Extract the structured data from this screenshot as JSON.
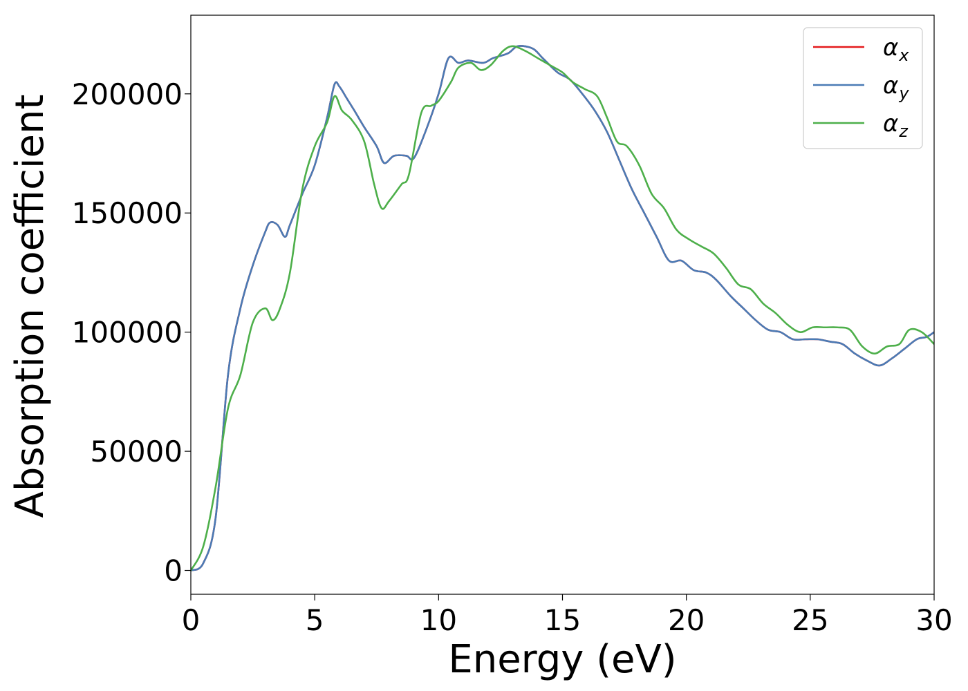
{
  "chart_data": {
    "type": "line",
    "title": "",
    "xlabel": "Energy (eV)",
    "ylabel": "Absorption coefficient",
    "xlim": [
      0,
      30
    ],
    "ylim": [
      -10000,
      233000
    ],
    "xticks": [
      0,
      5,
      10,
      15,
      20,
      25,
      30
    ],
    "yticks": [
      0,
      50000,
      100000,
      150000,
      200000
    ],
    "xtick_labels": [
      "0",
      "5",
      "10",
      "15",
      "20",
      "25",
      "30"
    ],
    "ytick_labels": [
      "0",
      "50000",
      "100000",
      "150000",
      "200000"
    ],
    "grid": false,
    "legend_position": "top-right",
    "series": [
      {
        "name": "α",
        "subscript": "x",
        "color": "#e41a1c",
        "x": [
          0,
          0.5,
          1,
          1.5,
          2,
          2.5,
          3,
          3.2,
          3.5,
          3.8,
          4,
          4.5,
          5,
          5.5,
          5.8,
          6,
          6.3,
          6.6,
          7,
          7.5,
          7.8,
          8.2,
          8.7,
          9,
          9.5,
          10,
          10.4,
          10.8,
          11.2,
          11.8,
          12.2,
          12.8,
          13.2,
          13.8,
          14.2,
          14.8,
          15.3,
          15.8,
          16.3,
          16.8,
          17.3,
          17.8,
          18.3,
          18.8,
          19.3,
          19.8,
          20.3,
          20.8,
          21.2,
          21.8,
          22.3,
          22.8,
          23.3,
          23.8,
          24.3,
          24.8,
          25.3,
          25.8,
          26.3,
          26.8,
          27.3,
          27.8,
          28.3,
          28.8,
          29.3,
          29.7,
          30
        ],
        "values": [
          0,
          3000,
          22000,
          82000,
          110000,
          128000,
          142000,
          146000,
          145000,
          140000,
          145000,
          158000,
          170000,
          190000,
          204000,
          203000,
          198000,
          193000,
          186000,
          178000,
          171000,
          174000,
          174000,
          173000,
          185000,
          200000,
          215000,
          213000,
          214000,
          213000,
          215000,
          217000,
          220000,
          219000,
          215000,
          209000,
          206000,
          200000,
          193000,
          184000,
          172000,
          160000,
          150000,
          140000,
          130000,
          130000,
          126000,
          125000,
          122000,
          115000,
          110000,
          105000,
          101000,
          100000,
          97000,
          97000,
          97000,
          96000,
          95000,
          91000,
          88000,
          86000,
          89000,
          93000,
          97000,
          98000,
          100000
        ]
      },
      {
        "name": "α",
        "subscript": "y",
        "color": "#4a7bb5",
        "x": [
          0,
          0.5,
          1,
          1.5,
          2,
          2.5,
          3,
          3.2,
          3.5,
          3.8,
          4,
          4.5,
          5,
          5.5,
          5.8,
          6,
          6.3,
          6.6,
          7,
          7.5,
          7.8,
          8.2,
          8.7,
          9,
          9.5,
          10,
          10.4,
          10.8,
          11.2,
          11.8,
          12.2,
          12.8,
          13.2,
          13.8,
          14.2,
          14.8,
          15.3,
          15.8,
          16.3,
          16.8,
          17.3,
          17.8,
          18.3,
          18.8,
          19.3,
          19.8,
          20.3,
          20.8,
          21.2,
          21.8,
          22.3,
          22.8,
          23.3,
          23.8,
          24.3,
          24.8,
          25.3,
          25.8,
          26.3,
          26.8,
          27.3,
          27.8,
          28.3,
          28.8,
          29.3,
          29.7,
          30
        ],
        "values": [
          0,
          3000,
          22000,
          82000,
          110000,
          128000,
          142000,
          146000,
          145000,
          140000,
          145000,
          158000,
          170000,
          190000,
          204000,
          203000,
          198000,
          193000,
          186000,
          178000,
          171000,
          174000,
          174000,
          173000,
          185000,
          200000,
          215000,
          213000,
          214000,
          213000,
          215000,
          217000,
          220000,
          219000,
          215000,
          209000,
          206000,
          200000,
          193000,
          184000,
          172000,
          160000,
          150000,
          140000,
          130000,
          130000,
          126000,
          125000,
          122000,
          115000,
          110000,
          105000,
          101000,
          100000,
          97000,
          97000,
          97000,
          96000,
          95000,
          91000,
          88000,
          86000,
          89000,
          93000,
          97000,
          98000,
          100000
        ]
      },
      {
        "name": "α",
        "subscript": "z",
        "color": "#4daf4a",
        "x": [
          0,
          0.5,
          1,
          1.5,
          2,
          2.5,
          3,
          3.3,
          3.6,
          4,
          4.5,
          5,
          5.5,
          5.8,
          6.1,
          6.5,
          7,
          7.4,
          7.7,
          8,
          8.5,
          8.8,
          9.3,
          9.7,
          10,
          10.5,
          10.8,
          11.3,
          11.7,
          12.1,
          12.6,
          13,
          13.5,
          14,
          14.5,
          15,
          15.4,
          15.9,
          16.4,
          16.8,
          17.2,
          17.6,
          18.1,
          18.6,
          19.1,
          19.6,
          20.1,
          20.6,
          21.1,
          21.6,
          22.1,
          22.6,
          23.1,
          23.6,
          24.1,
          24.6,
          25.1,
          25.6,
          26.1,
          26.6,
          27.1,
          27.6,
          28.1,
          28.6,
          29,
          29.5,
          30
        ],
        "values": [
          0,
          10000,
          35000,
          68000,
          82000,
          104000,
          110000,
          105000,
          110000,
          125000,
          160000,
          178000,
          188000,
          199000,
          193000,
          189000,
          180000,
          162000,
          152000,
          155000,
          162000,
          166000,
          192000,
          195000,
          197000,
          205000,
          211000,
          213000,
          210000,
          212000,
          218000,
          220000,
          218000,
          215000,
          212000,
          209000,
          205000,
          202000,
          199000,
          190000,
          180000,
          178000,
          170000,
          158000,
          152000,
          143000,
          139000,
          136000,
          133000,
          127000,
          120000,
          118000,
          112000,
          108000,
          103000,
          100000,
          102000,
          102000,
          102000,
          101000,
          94000,
          91000,
          94000,
          95000,
          101000,
          100000,
          95000
        ]
      }
    ]
  }
}
